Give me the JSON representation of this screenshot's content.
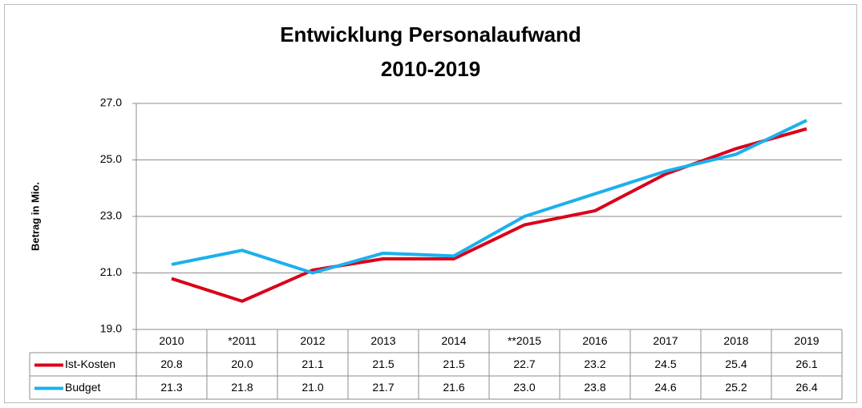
{
  "chart_data": {
    "type": "line",
    "title": "Entwicklung Personalaufwand",
    "subtitle": "2010-2019",
    "y_label": "Betrag in Mio.",
    "categories": [
      "2010",
      "*2011",
      "2012",
      "2013",
      "2014",
      "**2015",
      "2016",
      "2017",
      "2018",
      "2019"
    ],
    "series": [
      {
        "name": "Ist-Kosten",
        "color": "#d9001b",
        "values": [
          20.8,
          20.0,
          21.1,
          21.5,
          21.5,
          22.7,
          23.2,
          24.5,
          25.4,
          26.1
        ],
        "value_labels": [
          "20.8",
          "20.0",
          "21.1",
          "21.5",
          "21.5",
          "22.7",
          "23.2",
          "24.5",
          "25.4",
          "26.1"
        ]
      },
      {
        "name": "Budget",
        "color": "#1cb0ec",
        "values": [
          21.3,
          21.8,
          21.0,
          21.7,
          21.6,
          23.0,
          23.8,
          24.6,
          25.2,
          26.4
        ],
        "value_labels": [
          "21.3",
          "21.8",
          "21.0",
          "21.7",
          "21.6",
          "23.0",
          "23.8",
          "24.6",
          "25.2",
          "26.4"
        ]
      }
    ],
    "ylim": [
      19,
      27
    ],
    "yticks": [
      {
        "value": 19,
        "label": "19.0"
      },
      {
        "value": 21,
        "label": "21.0"
      },
      {
        "value": 23,
        "label": "23.0"
      },
      {
        "value": 25,
        "label": "25.0"
      },
      {
        "value": 27,
        "label": "27.0"
      }
    ],
    "grid": true
  }
}
